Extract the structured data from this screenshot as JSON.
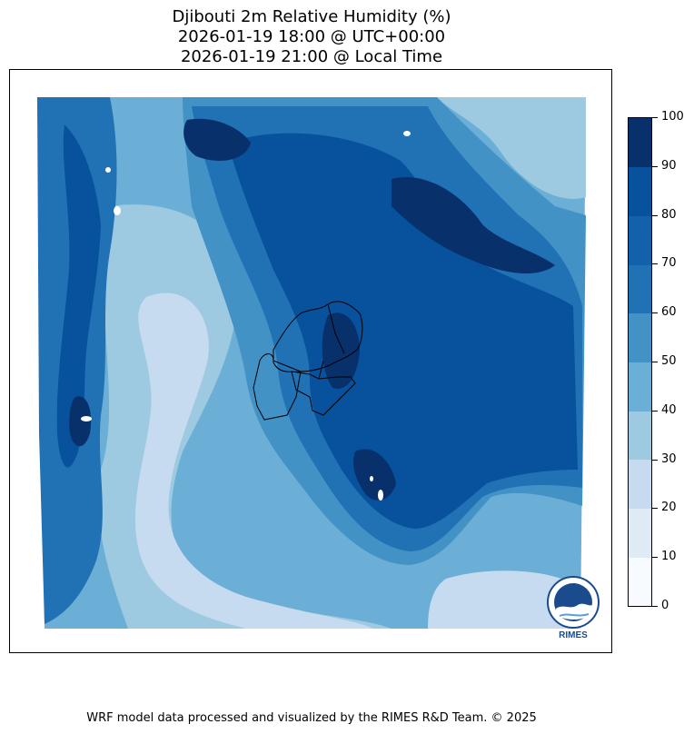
{
  "title": {
    "line1": "Djibouti 2m Relative Humidity (%)",
    "line2": "2026-01-19 18:00 @ UTC+00:00",
    "line3": "2026-01-19 21:00 @ Local Time"
  },
  "colorbar": {
    "ticks": [
      "0",
      "10",
      "20",
      "30",
      "40",
      "50",
      "60",
      "70",
      "80",
      "90",
      "100"
    ],
    "colors": [
      "#f7fbff",
      "#deebf7",
      "#c6dbef",
      "#9ecae1",
      "#6baed6",
      "#4292c6",
      "#2171b5",
      "#1361aa",
      "#08519c",
      "#08306b"
    ],
    "range": [
      0,
      100
    ]
  },
  "logo": {
    "text": "RIMES"
  },
  "footer": "WRF model data processed and visualized by the RIMES R&D Team. © 2025"
}
